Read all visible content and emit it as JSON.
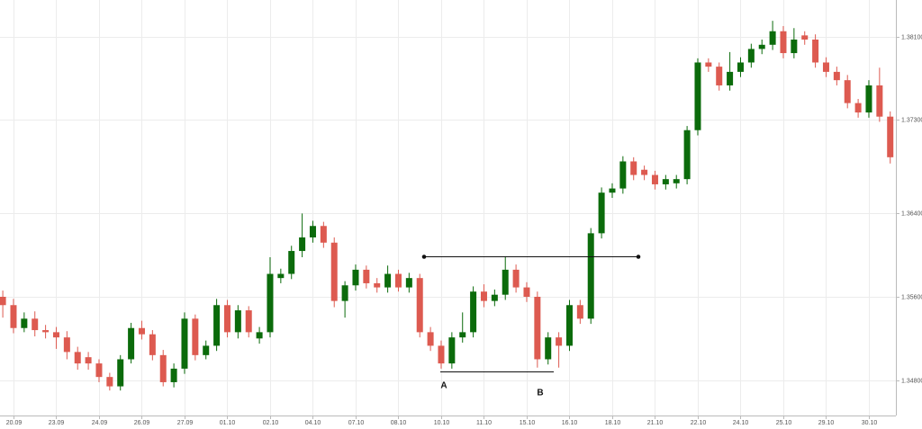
{
  "chart_data": {
    "type": "candlestick",
    "categories": [
      null,
      "20.09",
      null,
      null,
      null,
      "23.09",
      null,
      null,
      null,
      "24.09",
      null,
      null,
      null,
      "26.09",
      null,
      null,
      null,
      "27.09",
      null,
      null,
      null,
      "01.10",
      null,
      null,
      null,
      "02.10",
      null,
      null,
      null,
      "04.10",
      null,
      null,
      null,
      "07.10",
      null,
      null,
      null,
      "08.10",
      null,
      null,
      null,
      "10.10",
      null,
      null,
      null,
      "11.10",
      null,
      null,
      null,
      "15.10",
      null,
      null,
      null,
      "16.10",
      null,
      null,
      null,
      "18.10",
      null,
      null,
      null,
      "21.10",
      null,
      null,
      null,
      "22.10",
      null,
      null,
      null,
      "24.10",
      null,
      null,
      null,
      "25.10",
      null,
      null,
      null,
      "29.10",
      null,
      null,
      null,
      "30.10",
      null,
      null
    ],
    "open": [
      1.356,
      1.3552,
      1.353,
      1.3539,
      1.3528,
      1.3526,
      1.3521,
      1.3507,
      1.3502,
      1.3496,
      1.3483,
      1.3474,
      1.35,
      1.353,
      1.3524,
      1.3504,
      1.3478,
      1.3491,
      1.3539,
      1.3504,
      1.3513,
      1.3552,
      1.3526,
      1.3547,
      1.352,
      1.3526,
      1.3578,
      1.3582,
      1.3604,
      1.3617,
      1.3628,
      1.3612,
      1.3556,
      1.3571,
      1.3586,
      1.3573,
      1.3569,
      1.3582,
      1.3569,
      1.3578,
      1.3526,
      1.3513,
      1.3496,
      1.3521,
      1.3526,
      1.3565,
      1.3556,
      1.3562,
      1.3586,
      1.3569,
      1.356,
      1.35,
      1.3521,
      1.3513,
      1.3552,
      1.3539,
      1.3621,
      1.366,
      1.3664,
      1.369,
      1.3682,
      1.3677,
      1.3668,
      1.3669,
      1.3673,
      1.372,
      1.3785,
      1.3781,
      1.3763,
      1.3776,
      1.3785,
      1.3798,
      1.3802,
      1.3815,
      1.3794,
      1.3811,
      1.3807,
      1.3785,
      1.3776,
      1.3768,
      1.3746,
      1.3737,
      1.3763,
      1.3733
    ],
    "high": [
      1.3566,
      1.3558,
      1.3545,
      1.3546,
      1.3533,
      1.3531,
      1.3527,
      1.3512,
      1.3507,
      1.35,
      1.3487,
      1.3504,
      1.3535,
      1.3537,
      1.3528,
      1.3509,
      1.3496,
      1.3545,
      1.3543,
      1.3518,
      1.3558,
      1.3557,
      1.3552,
      1.3551,
      1.3531,
      1.3598,
      1.3587,
      1.3609,
      1.364,
      1.3633,
      1.3632,
      1.3617,
      1.3575,
      1.3591,
      1.359,
      1.3578,
      1.359,
      1.3586,
      1.3583,
      1.3582,
      1.3531,
      1.3518,
      1.3526,
      1.3545,
      1.357,
      1.3572,
      1.3567,
      1.3599,
      1.3591,
      1.3574,
      1.3565,
      1.3526,
      1.3526,
      1.3557,
      1.3557,
      1.3626,
      1.3665,
      1.3669,
      1.3695,
      1.3694,
      1.3686,
      1.3681,
      1.3677,
      1.3677,
      1.3724,
      1.3789,
      1.3789,
      1.3785,
      1.3795,
      1.379,
      1.3803,
      1.3807,
      1.3825,
      1.382,
      1.3818,
      1.3815,
      1.3812,
      1.379,
      1.3781,
      1.3773,
      1.375,
      1.3768,
      1.378,
      1.3738
    ],
    "low": [
      1.354,
      1.3525,
      1.3526,
      1.3522,
      1.352,
      1.351,
      1.35,
      1.349,
      1.349,
      1.3478,
      1.347,
      1.347,
      1.3496,
      1.3519,
      1.3499,
      1.3474,
      1.3473,
      1.3486,
      1.3499,
      1.35,
      1.3508,
      1.3521,
      1.352,
      1.3521,
      1.3515,
      1.3521,
      1.3573,
      1.3577,
      1.3598,
      1.3612,
      1.3607,
      1.355,
      1.354,
      1.3566,
      1.3568,
      1.3564,
      1.3564,
      1.3565,
      1.3564,
      1.3521,
      1.3508,
      1.3491,
      1.3491,
      1.3516,
      1.3521,
      1.355,
      1.3551,
      1.3557,
      1.3564,
      1.3555,
      1.3492,
      1.3495,
      1.3492,
      1.3508,
      1.3534,
      1.3534,
      1.3616,
      1.3655,
      1.3659,
      1.3672,
      1.3672,
      1.3663,
      1.3663,
      1.3664,
      1.3668,
      1.3715,
      1.3776,
      1.3758,
      1.3758,
      1.3771,
      1.378,
      1.3793,
      1.3797,
      1.3789,
      1.3789,
      1.3802,
      1.378,
      1.3771,
      1.3763,
      1.3741,
      1.3732,
      1.3732,
      1.3728,
      1.3688
    ],
    "close": [
      1.3552,
      1.353,
      1.3539,
      1.3528,
      1.3526,
      1.3521,
      1.3507,
      1.3496,
      1.3496,
      1.3483,
      1.3474,
      1.35,
      1.353,
      1.3524,
      1.3504,
      1.3478,
      1.3491,
      1.3539,
      1.3504,
      1.3513,
      1.3552,
      1.3526,
      1.3547,
      1.3526,
      1.3526,
      1.3582,
      1.3582,
      1.3604,
      1.3617,
      1.3628,
      1.3612,
      1.3556,
      1.3571,
      1.3586,
      1.3573,
      1.3569,
      1.3582,
      1.3569,
      1.3578,
      1.3526,
      1.3513,
      1.3496,
      1.3521,
      1.3526,
      1.3565,
      1.3556,
      1.3562,
      1.3586,
      1.3569,
      1.356,
      1.35,
      1.3521,
      1.3513,
      1.3552,
      1.3539,
      1.3621,
      1.366,
      1.3664,
      1.369,
      1.3677,
      1.3677,
      1.3668,
      1.3673,
      1.3673,
      1.372,
      1.3785,
      1.3781,
      1.3763,
      1.3776,
      1.3785,
      1.3798,
      1.3802,
      1.3815,
      1.3794,
      1.3807,
      1.3807,
      1.3785,
      1.3776,
      1.3768,
      1.3746,
      1.3737,
      1.3763,
      1.3733,
      1.3694
    ],
    "up_color": "#0b6b0b",
    "down_color": "#dd5a50",
    "ylim": [
      1.3446,
      1.3845
    ],
    "yticks": [
      {
        "value": 1.348,
        "label": "1.34800"
      },
      {
        "value": 1.356,
        "label": "1.35600"
      },
      {
        "value": 1.364,
        "label": "1.36400"
      },
      {
        "value": 1.373,
        "label": "1.37300"
      },
      {
        "value": 1.381,
        "label": "1.38100"
      }
    ],
    "grid": true,
    "annotations": [
      "A",
      "B"
    ]
  }
}
